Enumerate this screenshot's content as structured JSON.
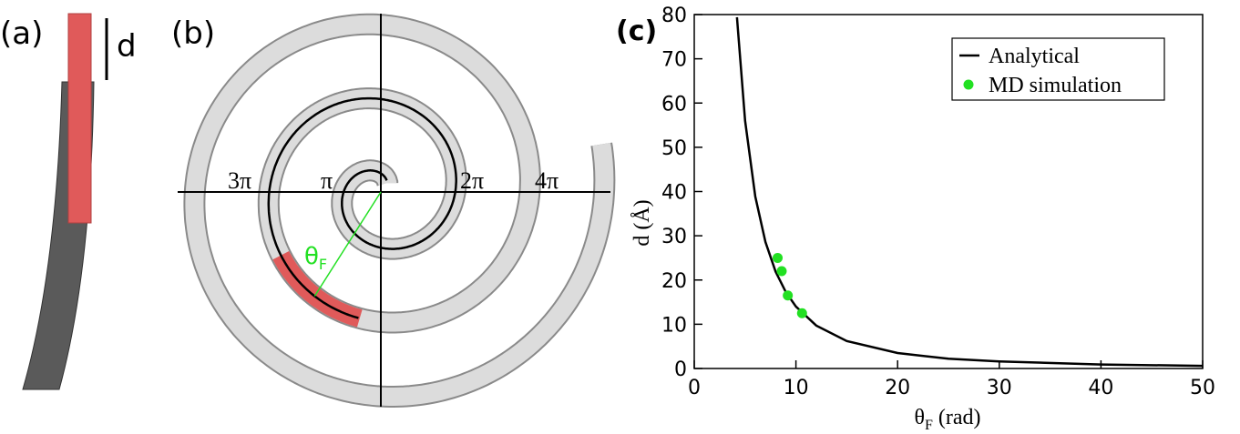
{
  "panels": {
    "a": {
      "label": "(a)",
      "length_label": "d"
    },
    "b": {
      "label": "(b)",
      "angle_labels": [
        "3π",
        "π",
        "2π",
        "4π"
      ],
      "theta_label": [
        "θ",
        "F"
      ]
    }
  },
  "chart_data": {
    "type": "line",
    "panel_label": "(c)",
    "xlabel": [
      "θ",
      "F",
      "(rad)"
    ],
    "ylabel": "d (Å)",
    "xlim": [
      0,
      50
    ],
    "ylim": [
      0,
      80
    ],
    "xticks": [
      0,
      10,
      20,
      30,
      40,
      50
    ],
    "yticks": [
      0,
      10,
      20,
      30,
      40,
      50,
      60,
      70,
      80
    ],
    "legend": "upper right",
    "series": [
      {
        "name": "Analytical",
        "color": "#000000",
        "type": "line",
        "x": [
          4.2,
          5,
          6,
          7,
          8,
          9,
          10,
          12,
          15,
          20,
          25,
          30,
          40,
          50
        ],
        "values": [
          79.4,
          56,
          38.9,
          28.6,
          21.9,
          17.3,
          14,
          9.7,
          6.2,
          3.5,
          2.2,
          1.6,
          0.9,
          0.6
        ]
      },
      {
        "name": "MD simulation",
        "color": "#22e022",
        "type": "scatter",
        "x": [
          8.2,
          8.6,
          9.2,
          10.6
        ],
        "values": [
          25,
          22,
          16.5,
          12.5
        ]
      }
    ]
  }
}
